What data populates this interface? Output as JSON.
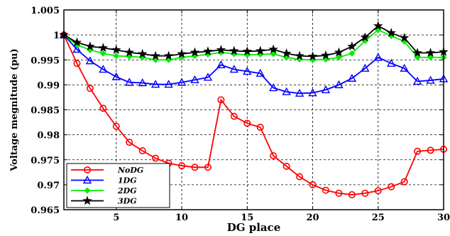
{
  "chart_data": {
    "type": "line",
    "title": "",
    "xlabel": "DG place",
    "ylabel": "Voltage megnitude (pu)",
    "xlim": [
      1,
      30
    ],
    "ylim": [
      0.965,
      1.005
    ],
    "xticks": [
      "5",
      "10",
      "15",
      "20",
      "25",
      "30"
    ],
    "yticks": [
      "0.965",
      "0.97",
      "0.975",
      "0.98",
      "0.985",
      "0.99",
      "0.995",
      "1",
      "1.005"
    ],
    "grid": true,
    "legend_position": "bottom-left",
    "x": [
      1,
      2,
      3,
      4,
      5,
      6,
      7,
      8,
      9,
      10,
      11,
      12,
      13,
      14,
      15,
      16,
      17,
      18,
      19,
      20,
      21,
      22,
      23,
      24,
      25,
      26,
      27,
      28,
      29,
      30
    ],
    "series": [
      {
        "name": "NoDG",
        "color": "#ff0000",
        "marker": "circle",
        "values": [
          1.0,
          0.9943,
          0.9893,
          0.9853,
          0.9817,
          0.9785,
          0.9768,
          0.9753,
          0.9743,
          0.9738,
          0.9735,
          0.9735,
          0.987,
          0.9837,
          0.9823,
          0.9815,
          0.9758,
          0.9737,
          0.9716,
          0.97,
          0.9689,
          0.9683,
          0.968,
          0.9683,
          0.9688,
          0.9696,
          0.9706,
          0.9767,
          0.9769,
          0.9771
        ]
      },
      {
        "name": "1DG",
        "color": "#0000ff",
        "marker": "triangle",
        "values": [
          1.0,
          0.9971,
          0.9948,
          0.9931,
          0.9916,
          0.9905,
          0.9904,
          0.9901,
          0.9901,
          0.9905,
          0.991,
          0.9915,
          0.994,
          0.9931,
          0.9927,
          0.9923,
          0.9894,
          0.9886,
          0.9883,
          0.9884,
          0.989,
          0.99,
          0.9913,
          0.9933,
          0.9955,
          0.9943,
          0.9933,
          0.9907,
          0.9909,
          0.9912
        ]
      },
      {
        "name": "2DG",
        "color": "#00ee00",
        "marker": "diamond",
        "values": [
          1.0,
          0.998,
          0.997,
          0.9963,
          0.9958,
          0.9957,
          0.9955,
          0.995,
          0.995,
          0.9955,
          0.9958,
          0.9961,
          0.9965,
          0.9962,
          0.996,
          0.9961,
          0.9962,
          0.9955,
          0.9951,
          0.995,
          0.9951,
          0.9955,
          0.9963,
          0.9988,
          1.001,
          0.9998,
          0.9987,
          0.9955,
          0.9955,
          0.9955
        ]
      },
      {
        "name": "3DG",
        "color": "#000000",
        "marker": "star",
        "values": [
          1.0,
          0.9985,
          0.9977,
          0.9974,
          0.997,
          0.9965,
          0.9962,
          0.9958,
          0.9958,
          0.9962,
          0.9965,
          0.9967,
          0.997,
          0.9968,
          0.9967,
          0.9968,
          0.9971,
          0.9963,
          0.9958,
          0.9957,
          0.9959,
          0.9965,
          0.9977,
          0.9995,
          1.0018,
          1.0004,
          0.9994,
          0.9964,
          0.9964,
          0.9966
        ]
      }
    ]
  }
}
